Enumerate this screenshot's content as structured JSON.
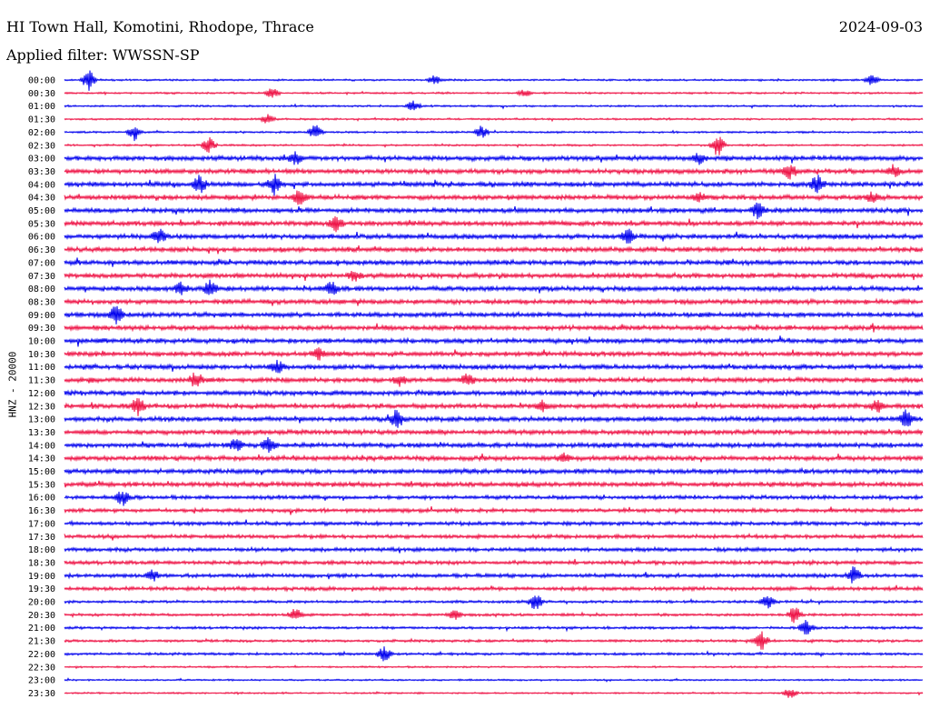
{
  "header": {
    "station": "HI Town Hall, Komotini, Rhodope, Thrace",
    "date": "2024-09-03",
    "filter_prefix": "Applied filter:",
    "filter_name": "WWSSN-SP",
    "channel": "HNZ - 20000"
  },
  "chart_data": {
    "type": "line",
    "title": "HI Town Hall, Komotini, Rhodope, Thrace",
    "subtitle": "Applied filter: WWSSN-SP",
    "ylabel": "HNZ - 20000",
    "y_categories": [
      "00:00",
      "00:30",
      "01:00",
      "01:30",
      "02:00",
      "02:30",
      "03:00",
      "03:30",
      "04:00",
      "04:30",
      "05:00",
      "05:30",
      "06:00",
      "06:30",
      "07:00",
      "07:30",
      "08:00",
      "08:30",
      "09:00",
      "09:30",
      "10:00",
      "10:30",
      "11:00",
      "11:30",
      "12:00",
      "12:30",
      "13:00",
      "13:30",
      "14:00",
      "14:30",
      "15:00",
      "15:30",
      "16:00",
      "16:30",
      "17:00",
      "17:30",
      "18:00",
      "18:30",
      "19:00",
      "19:30",
      "20:00",
      "20:30",
      "21:00",
      "21:30",
      "22:00",
      "22:30",
      "23:00",
      "23:30"
    ],
    "trace_colors": [
      "#0000ee",
      "#ee1144"
    ],
    "grid": false
  }
}
